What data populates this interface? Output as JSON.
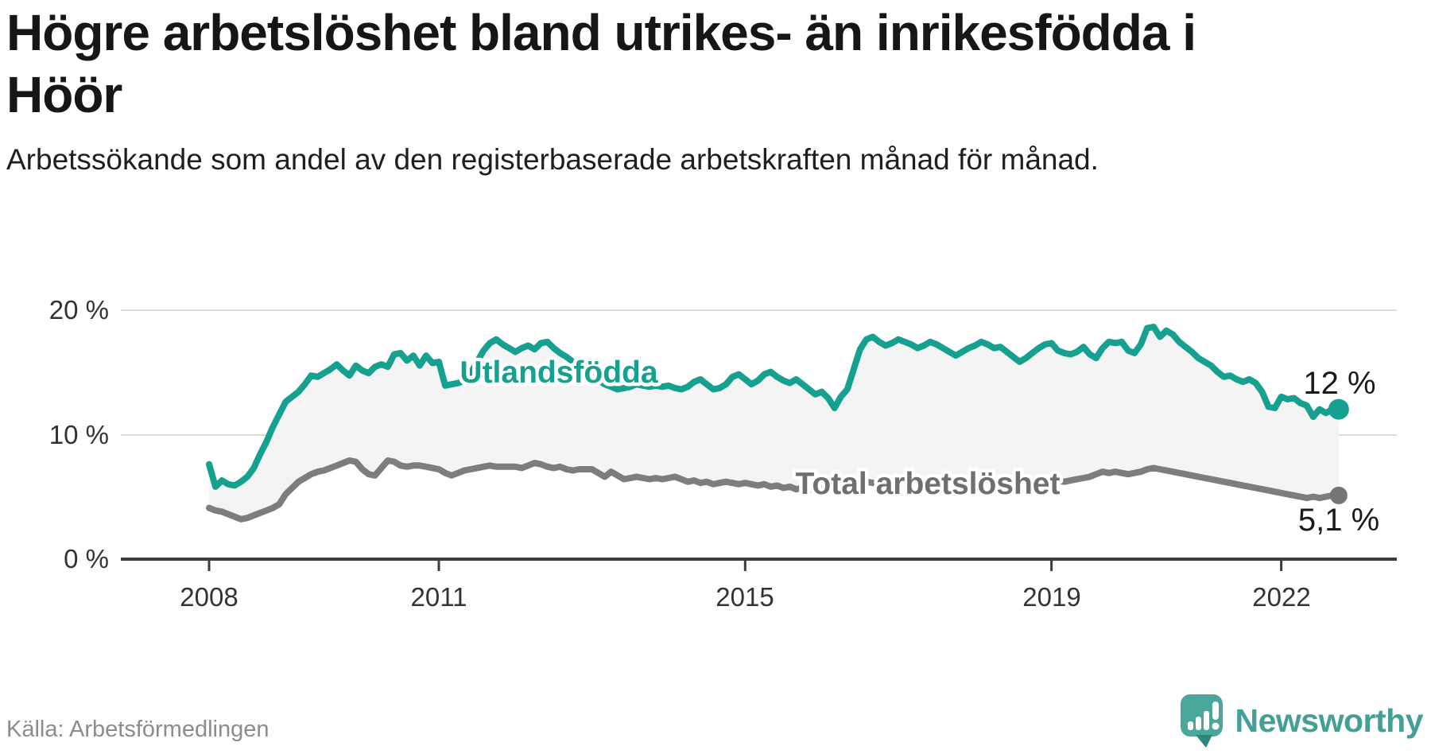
{
  "header": {
    "title": "Högre arbetslöshet bland utrikes- än inrikesfödda i Höör",
    "subtitle": "Arbetssökande som andel av den registerbaserade arbetskraften månad för månad."
  },
  "footer": {
    "source": "Källa: Arbetsförmedlingen",
    "brand_name": "Newsworthy",
    "brand_icon": "newsworthy-chart-bubble-icon",
    "brand_color": "#43a096"
  },
  "chart_data": {
    "type": "line",
    "title": "",
    "xlabel": "",
    "ylabel": "",
    "x_start_year": 2008,
    "x_step_months": 1,
    "x_end_label": "2022 (Oct)",
    "ylim": [
      0,
      21
    ],
    "grid": "horizontal",
    "gridline_color": "#dbdbdb",
    "axis_color": "#3d3d3d",
    "fill_between_color": "#f4f4f4",
    "legend_position": "inline-labels-on-lines",
    "yticks": [
      {
        "label": "20 %",
        "value": 20
      },
      {
        "label": "10 %",
        "value": 10
      },
      {
        "label": "0 %",
        "value": 0
      }
    ],
    "xticks": [
      {
        "label": "2008",
        "year": 2008
      },
      {
        "label": "2011",
        "year": 2011
      },
      {
        "label": "2015",
        "year": 2015
      },
      {
        "label": "2019",
        "year": 2019
      },
      {
        "label": "2022",
        "year": 2022
      }
    ],
    "series": [
      {
        "name": "Utlandsfödda",
        "color": "#15a08f",
        "end_label": "12 %",
        "end_value": 12.0,
        "values": [
          7.6,
          5.8,
          6.3,
          6.0,
          5.9,
          6.2,
          6.6,
          7.3,
          8.4,
          9.4,
          10.6,
          11.6,
          12.6,
          13.0,
          13.4,
          14.0,
          14.7,
          14.6,
          14.9,
          15.2,
          15.6,
          15.1,
          14.7,
          15.5,
          15.1,
          14.9,
          15.4,
          15.6,
          15.4,
          16.4,
          16.5,
          15.9,
          16.3,
          15.5,
          16.3,
          15.7,
          15.8,
          13.9,
          14.0,
          14.1,
          14.3,
          14.9,
          15.8,
          16.7,
          17.3,
          17.6,
          17.2,
          16.9,
          16.6,
          16.9,
          17.1,
          16.8,
          17.3,
          17.4,
          16.9,
          16.5,
          16.2,
          15.8,
          15.4,
          15.0,
          14.6,
          14.3,
          14.0,
          13.8,
          13.6,
          13.7,
          13.8,
          14.0,
          13.9,
          13.8,
          13.9,
          13.8,
          13.9,
          13.7,
          13.6,
          13.8,
          14.2,
          14.4,
          14.0,
          13.6,
          13.7,
          14.0,
          14.6,
          14.8,
          14.4,
          14.0,
          14.3,
          14.8,
          15.0,
          14.6,
          14.3,
          14.1,
          14.4,
          14.0,
          13.6,
          13.2,
          13.4,
          12.9,
          12.1,
          13.0,
          13.6,
          15.2,
          16.8,
          17.6,
          17.8,
          17.4,
          17.1,
          17.3,
          17.6,
          17.4,
          17.2,
          16.9,
          17.1,
          17.4,
          17.2,
          16.9,
          16.6,
          16.3,
          16.6,
          16.9,
          17.1,
          17.4,
          17.2,
          16.9,
          17.0,
          16.6,
          16.2,
          15.8,
          16.1,
          16.5,
          16.9,
          17.2,
          17.3,
          16.7,
          16.5,
          16.4,
          16.6,
          17.0,
          16.4,
          16.1,
          16.9,
          17.4,
          17.3,
          17.4,
          16.7,
          16.5,
          17.2,
          18.5,
          18.6,
          17.8,
          18.3,
          18.0,
          17.4,
          17.0,
          16.6,
          16.1,
          15.8,
          15.5,
          15.0,
          14.6,
          14.7,
          14.4,
          14.2,
          14.4,
          14.1,
          13.4,
          12.2,
          12.1,
          13.0,
          12.8,
          12.9,
          12.5,
          12.3,
          11.4,
          12.0,
          11.7,
          12.0,
          12.0
        ]
      },
      {
        "name": "Total arbetslöshet",
        "color": "#7d7d7d",
        "end_label": "5,1 %",
        "end_value": 5.1,
        "values": [
          4.1,
          3.9,
          3.8,
          3.6,
          3.4,
          3.2,
          3.3,
          3.5,
          3.7,
          3.9,
          4.1,
          4.4,
          5.2,
          5.7,
          6.2,
          6.5,
          6.8,
          7.0,
          7.1,
          7.3,
          7.5,
          7.7,
          7.9,
          7.8,
          7.2,
          6.8,
          6.7,
          7.3,
          7.9,
          7.8,
          7.5,
          7.4,
          7.5,
          7.5,
          7.4,
          7.3,
          7.2,
          6.9,
          6.7,
          6.9,
          7.1,
          7.2,
          7.3,
          7.4,
          7.5,
          7.4,
          7.4,
          7.4,
          7.4,
          7.3,
          7.5,
          7.7,
          7.6,
          7.4,
          7.3,
          7.4,
          7.2,
          7.1,
          7.2,
          7.2,
          7.2,
          6.9,
          6.6,
          7.0,
          6.7,
          6.4,
          6.5,
          6.6,
          6.5,
          6.4,
          6.5,
          6.4,
          6.5,
          6.6,
          6.4,
          6.2,
          6.3,
          6.1,
          6.2,
          6.0,
          6.1,
          6.2,
          6.1,
          6.0,
          6.1,
          6.0,
          5.9,
          6.0,
          5.8,
          5.9,
          5.7,
          5.8,
          5.6,
          5.7,
          5.6,
          5.5,
          5.6,
          5.7,
          5.9,
          6.0,
          6.1,
          6.0,
          6.1,
          6.2,
          6.1,
          6.0,
          6.1,
          6.2,
          6.3,
          6.4,
          6.3,
          6.2,
          6.3,
          6.4,
          6.3,
          6.2,
          6.1,
          6.2,
          6.3,
          6.4,
          6.4,
          6.5,
          6.3,
          6.2,
          6.3,
          6.1,
          6.0,
          6.1,
          6.2,
          6.3,
          6.2,
          6.3,
          6.4,
          6.3,
          6.2,
          6.3,
          6.4,
          6.5,
          6.6,
          6.8,
          7.0,
          6.9,
          7.0,
          6.9,
          6.8,
          6.9,
          7.0,
          7.2,
          7.3,
          7.2,
          7.1,
          7.0,
          6.9,
          6.8,
          6.7,
          6.6,
          6.5,
          6.4,
          6.3,
          6.2,
          6.1,
          6.0,
          5.9,
          5.8,
          5.7,
          5.6,
          5.5,
          5.4,
          5.3,
          5.2,
          5.1,
          5.0,
          4.9,
          5.0,
          4.9,
          5.0,
          5.1,
          5.1
        ]
      }
    ]
  }
}
